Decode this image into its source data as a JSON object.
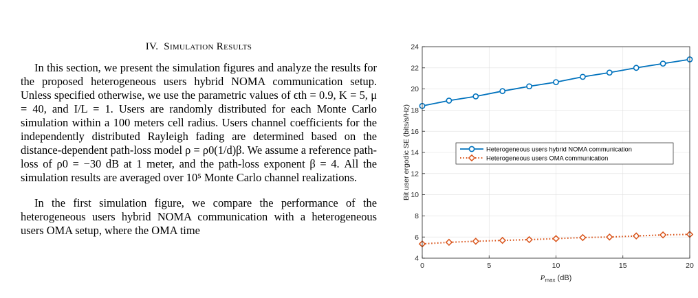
{
  "section": {
    "number": "IV.",
    "title": "Simulation Results"
  },
  "paragraphs": [
    "In this section, we present the simulation figures and analyze the results for the proposed heterogeneous users hybrid NOMA communication setup. Unless specified otherwise, we use the parametric values of ϵth = 0.9, K = 5, μ = 40, and I/L = 1. Users are randomly distributed for each Monte Carlo simulation within a 100 meters cell radius. Users channel coefficients for the independently distributed Rayleigh fading are determined based on the distance-dependent path-loss model ρ = ρ0(1/d)β. We assume a reference path-loss of ρ0 = −30 dB at 1 meter, and the path-loss exponent β = 4. All the simulation results are averaged over 10⁵ Monte Carlo channel realizations.",
    "In the first simulation figure, we compare the performance of the heterogeneous users hybrid NOMA communication with a heterogeneous users OMA setup, where the OMA time"
  ],
  "chart_data": {
    "type": "line",
    "xlabel": "P_max (dB)",
    "ylabel": "Bit user ergodic SE (bits/s/Hz)",
    "xlim": [
      0,
      20
    ],
    "ylim": [
      4,
      24
    ],
    "xticks": [
      0,
      5,
      10,
      15,
      20
    ],
    "yticks": [
      4,
      6,
      8,
      10,
      12,
      14,
      16,
      18,
      20,
      22,
      24
    ],
    "grid": true,
    "legend_position": "center-right",
    "x": [
      0,
      2,
      4,
      6,
      8,
      10,
      12,
      14,
      16,
      18,
      20
    ],
    "series": [
      {
        "name": "Heterogeneous users hybrid NOMA communication",
        "color": "#0072BD",
        "marker": "circle",
        "line_style": "solid",
        "values": [
          18.4,
          18.9,
          19.3,
          19.8,
          20.25,
          20.65,
          21.15,
          21.55,
          22.0,
          22.4,
          22.8
        ]
      },
      {
        "name": "Heterogeneous users OMA communication",
        "color": "#D95319",
        "marker": "diamond",
        "line_style": "dotted",
        "values": [
          5.35,
          5.5,
          5.6,
          5.68,
          5.75,
          5.85,
          5.95,
          6.0,
          6.1,
          6.2,
          6.25
        ]
      }
    ]
  }
}
